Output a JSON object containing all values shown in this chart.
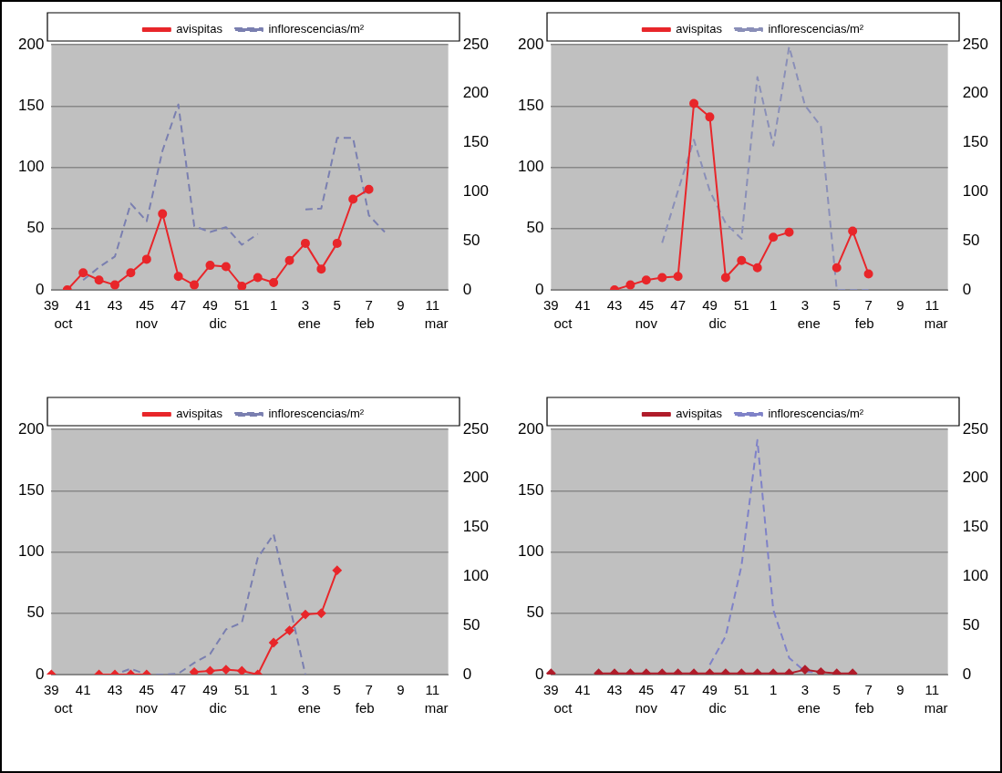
{
  "chart_data": [
    {
      "type": "line",
      "categories": [
        "39",
        null,
        "41",
        null,
        "43",
        null,
        "45",
        null,
        "47",
        null,
        "49",
        null,
        "51",
        null,
        "1",
        null,
        "3",
        null,
        "5",
        null,
        "7",
        null,
        "9",
        null,
        "11",
        null
      ],
      "marker": "circle",
      "grid": "y",
      "legend": "top",
      "ylim": [
        0,
        200
      ],
      "yticks": [
        0,
        50,
        100,
        150,
        200
      ],
      "y2lim": [
        0,
        250
      ],
      "y2ticks": [
        0,
        50,
        100,
        150,
        200,
        250
      ],
      "annotations": [
        "oct",
        "nov",
        "dic",
        "ene",
        "feb",
        "mar"
      ],
      "series": [
        {
          "name": "avispitas",
          "color": "#e8262a",
          "line_style": "solid",
          "values": [
            null,
            0,
            14,
            8,
            4,
            14,
            25,
            62,
            11,
            4,
            20,
            19,
            3,
            10,
            6,
            24,
            38,
            17,
            38,
            74,
            82,
            null,
            null,
            null,
            null,
            null
          ]
        },
        {
          "name": "inflorescencias/m²",
          "color": "#7a7fb0",
          "line_style": "dashed",
          "marker": "none",
          "axis": "y2",
          "values": [
            null,
            null,
            10,
            23,
            34,
            88,
            70,
            142,
            189,
            65,
            59,
            64,
            46,
            57,
            null,
            null,
            82,
            83,
            155,
            155,
            76,
            59,
            null,
            null,
            null,
            null
          ]
        }
      ]
    },
    {
      "type": "line",
      "categories": [
        "39",
        null,
        "41",
        null,
        "43",
        null,
        "45",
        null,
        "47",
        null,
        "49",
        null,
        "51",
        null,
        "1",
        null,
        "3",
        null,
        "5",
        null,
        "7",
        null,
        "9",
        null,
        "11",
        null
      ],
      "marker": "circle",
      "grid": "y",
      "legend": "top",
      "ylim": [
        0,
        200
      ],
      "yticks": [
        0,
        50,
        100,
        150,
        200
      ],
      "y2lim": [
        0,
        250
      ],
      "y2ticks": [
        0,
        50,
        100,
        150,
        200,
        250
      ],
      "annotations": [
        "oct",
        "nov",
        "dic",
        "ene",
        "feb",
        "mar"
      ],
      "series": [
        {
          "name": "avispitas",
          "color": "#e8262a",
          "line_style": "solid",
          "values": [
            null,
            null,
            null,
            null,
            0,
            4,
            8,
            10,
            11,
            152,
            141,
            10,
            24,
            18,
            43,
            47,
            null,
            null,
            18,
            48,
            13,
            null,
            null,
            null,
            null,
            null
          ]
        },
        {
          "name": "inflorescencias/m²",
          "color": "#8a8fb8",
          "line_style": "dashed",
          "marker": "none",
          "axis": "y2",
          "values": [
            null,
            null,
            null,
            null,
            null,
            null,
            null,
            48,
            101,
            153,
            101,
            68,
            52,
            217,
            147,
            248,
            188,
            167,
            0,
            0,
            0,
            null,
            null,
            null,
            null,
            null
          ]
        }
      ]
    },
    {
      "type": "line",
      "categories": [
        "39",
        null,
        "41",
        null,
        "43",
        null,
        "45",
        null,
        "47",
        null,
        "49",
        null,
        "51",
        null,
        "1",
        null,
        "3",
        null,
        "5",
        null,
        "7",
        null,
        "9",
        null,
        "11",
        null
      ],
      "marker": "diamond",
      "grid": "y",
      "legend": "top",
      "ylim": [
        0,
        200
      ],
      "yticks": [
        0,
        50,
        100,
        150,
        200
      ],
      "y2lim": [
        0,
        250
      ],
      "y2ticks": [
        0,
        50,
        100,
        150,
        200,
        250
      ],
      "annotations": [
        "oct",
        "nov",
        "dic",
        "ene",
        "feb",
        "mar"
      ],
      "series": [
        {
          "name": "avispitas",
          "color": "#e8262a",
          "line_style": "solid",
          "values": [
            0,
            null,
            null,
            0,
            0,
            0,
            0,
            null,
            null,
            2,
            3,
            4,
            3,
            0,
            26,
            36,
            49,
            50,
            85,
            null,
            null,
            null,
            null,
            null,
            null,
            null
          ]
        },
        {
          "name": "inflorescencias/m²",
          "color": "#7a7fb0",
          "line_style": "dashed",
          "marker": "none",
          "axis": "y2",
          "values": [
            null,
            null,
            null,
            0,
            0,
            6,
            0,
            0,
            1,
            12,
            21,
            46,
            53,
            119,
            143,
            71,
            0,
            null,
            null,
            null,
            null,
            null,
            null,
            null,
            null,
            null
          ]
        }
      ]
    },
    {
      "type": "line",
      "categories": [
        "39",
        null,
        "41",
        null,
        "43",
        null,
        "45",
        null,
        "47",
        null,
        "49",
        null,
        "51",
        null,
        "1",
        null,
        "3",
        null,
        "5",
        null,
        "7",
        null,
        "9",
        null,
        "11",
        null
      ],
      "marker": "diamond",
      "grid": "y",
      "legend": "top",
      "ylim": [
        0,
        200
      ],
      "yticks": [
        0,
        50,
        100,
        150,
        200
      ],
      "y2lim": [
        0,
        250
      ],
      "y2ticks": [
        0,
        50,
        100,
        150,
        200,
        250
      ],
      "annotations": [
        "oct",
        "nov",
        "dic",
        "ene",
        "feb",
        "mar"
      ],
      "series": [
        {
          "name": "avispitas",
          "color": "#b01c2a",
          "line_style": "solid",
          "values": [
            1,
            null,
            null,
            1,
            1,
            1,
            1,
            1,
            1,
            1,
            1,
            1,
            1,
            1,
            1,
            1,
            4,
            2,
            1,
            1,
            null,
            null,
            null,
            null,
            null,
            null
          ]
        },
        {
          "name": "inflorescencias/m²",
          "color": "#7f82c8",
          "line_style": "dashed",
          "marker": "none",
          "axis": "y2",
          "values": [
            null,
            null,
            null,
            null,
            null,
            null,
            null,
            null,
            null,
            null,
            10,
            39,
            111,
            239,
            66,
            17,
            3,
            2,
            null,
            null,
            null,
            null,
            null,
            null,
            null,
            null
          ]
        }
      ]
    }
  ]
}
